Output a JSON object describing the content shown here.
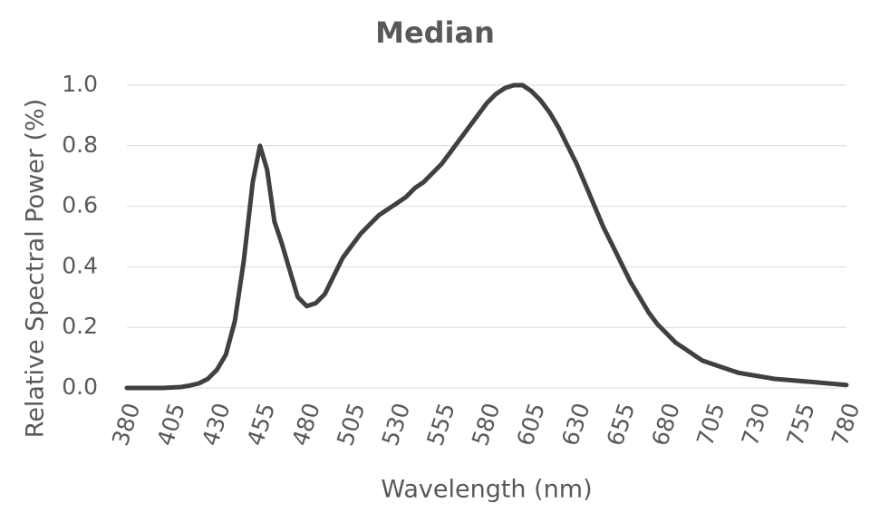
{
  "chart_data": {
    "type": "line",
    "title": "Median",
    "x_label": "Wavelength (nm)",
    "y_label": "Relative Spectral Power (%)",
    "x": [
      380,
      390,
      400,
      410,
      415,
      420,
      425,
      430,
      435,
      440,
      445,
      450,
      454,
      458,
      462,
      466,
      470,
      475,
      480,
      485,
      490,
      495,
      500,
      505,
      510,
      515,
      520,
      525,
      530,
      535,
      540,
      545,
      550,
      555,
      560,
      565,
      570,
      575,
      580,
      585,
      590,
      595,
      600,
      605,
      610,
      615,
      620,
      625,
      630,
      635,
      640,
      645,
      650,
      655,
      660,
      665,
      670,
      675,
      680,
      685,
      690,
      695,
      700,
      705,
      710,
      715,
      720,
      725,
      730,
      740,
      750,
      760,
      770,
      780
    ],
    "series": [
      {
        "name": "Median",
        "color": "#404040",
        "values": [
          0,
          0,
          0,
          0.003,
          0.008,
          0.015,
          0.03,
          0.06,
          0.11,
          0.22,
          0.42,
          0.68,
          0.8,
          0.72,
          0.55,
          0.48,
          0.4,
          0.3,
          0.27,
          0.28,
          0.31,
          0.37,
          0.43,
          0.47,
          0.51,
          0.54,
          0.57,
          0.59,
          0.61,
          0.63,
          0.66,
          0.68,
          0.71,
          0.74,
          0.78,
          0.82,
          0.86,
          0.9,
          0.94,
          0.97,
          0.99,
          1.0,
          1.0,
          0.98,
          0.95,
          0.91,
          0.86,
          0.8,
          0.74,
          0.67,
          0.6,
          0.53,
          0.47,
          0.41,
          0.35,
          0.3,
          0.25,
          0.21,
          0.18,
          0.15,
          0.13,
          0.11,
          0.09,
          0.08,
          0.07,
          0.06,
          0.05,
          0.045,
          0.04,
          0.03,
          0.025,
          0.02,
          0.015,
          0.01
        ]
      }
    ],
    "xlim": [
      380,
      780
    ],
    "xticks": [
      380,
      405,
      430,
      455,
      480,
      505,
      530,
      555,
      580,
      605,
      630,
      655,
      680,
      705,
      730,
      755,
      780
    ],
    "ylim": [
      0,
      1
    ],
    "yticks": [
      {
        "value": 0,
        "label": "0.0"
      },
      0.2,
      0.4,
      0.6,
      0.8,
      {
        "value": 1,
        "label": "1.0"
      }
    ],
    "grid": true
  }
}
